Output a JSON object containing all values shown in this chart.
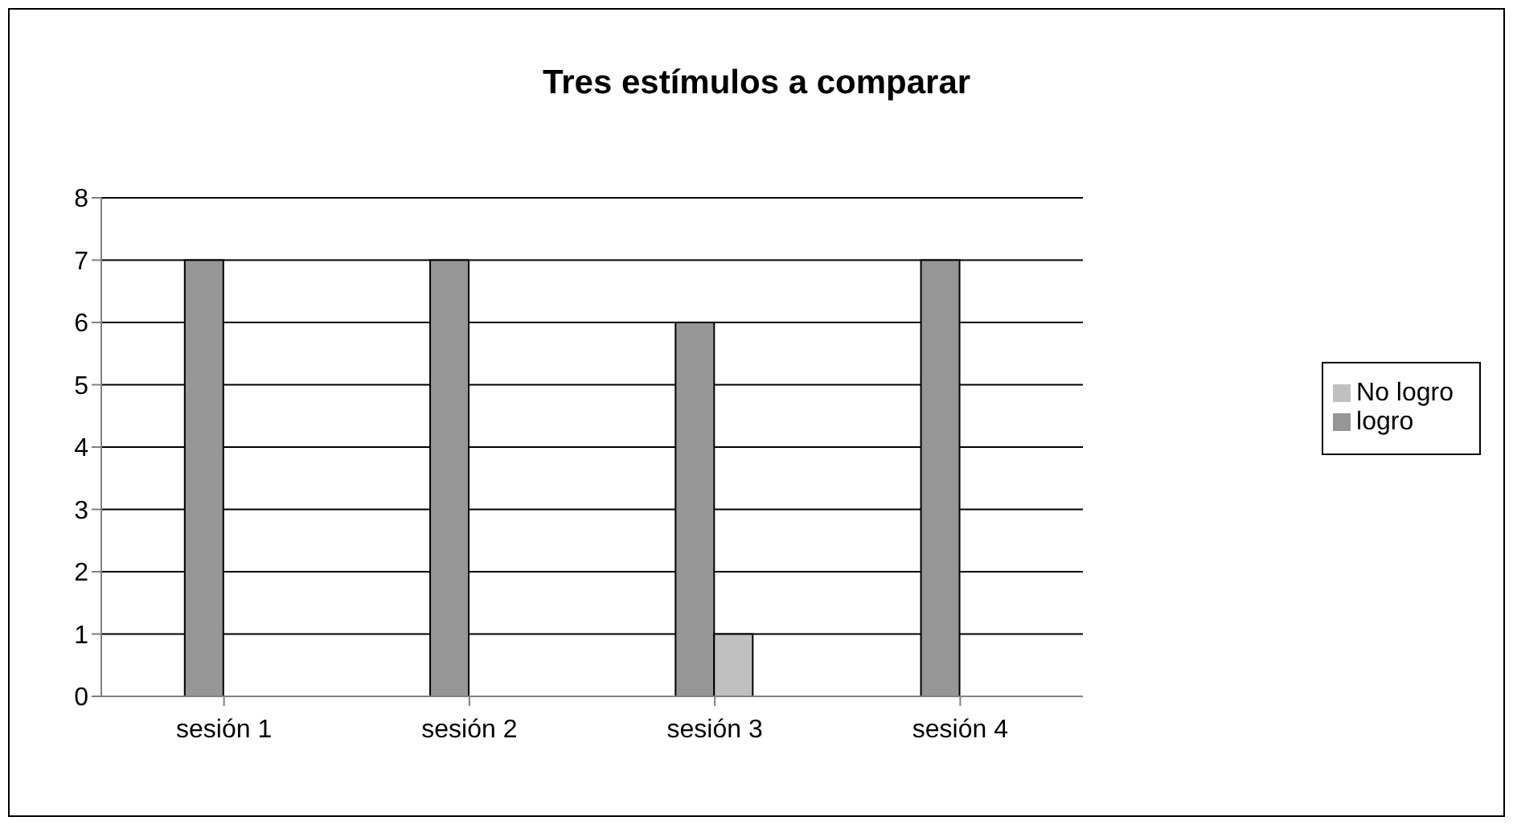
{
  "chart_data": {
    "type": "bar",
    "title": "Tres estímulos a comparar",
    "categories": [
      "sesión 1",
      "sesión 2",
      "sesión 3",
      "sesión 4"
    ],
    "series": [
      {
        "name": "logro",
        "color": "#969696",
        "values": [
          7,
          7,
          6,
          7
        ]
      },
      {
        "name": "No logro",
        "color": "#c0c0c0",
        "values": [
          0,
          0,
          1,
          0
        ]
      }
    ],
    "ylim": [
      0,
      8
    ],
    "yticks": [
      0,
      1,
      2,
      3,
      4,
      5,
      6,
      7,
      8
    ],
    "grid": "y",
    "legend": "right"
  }
}
